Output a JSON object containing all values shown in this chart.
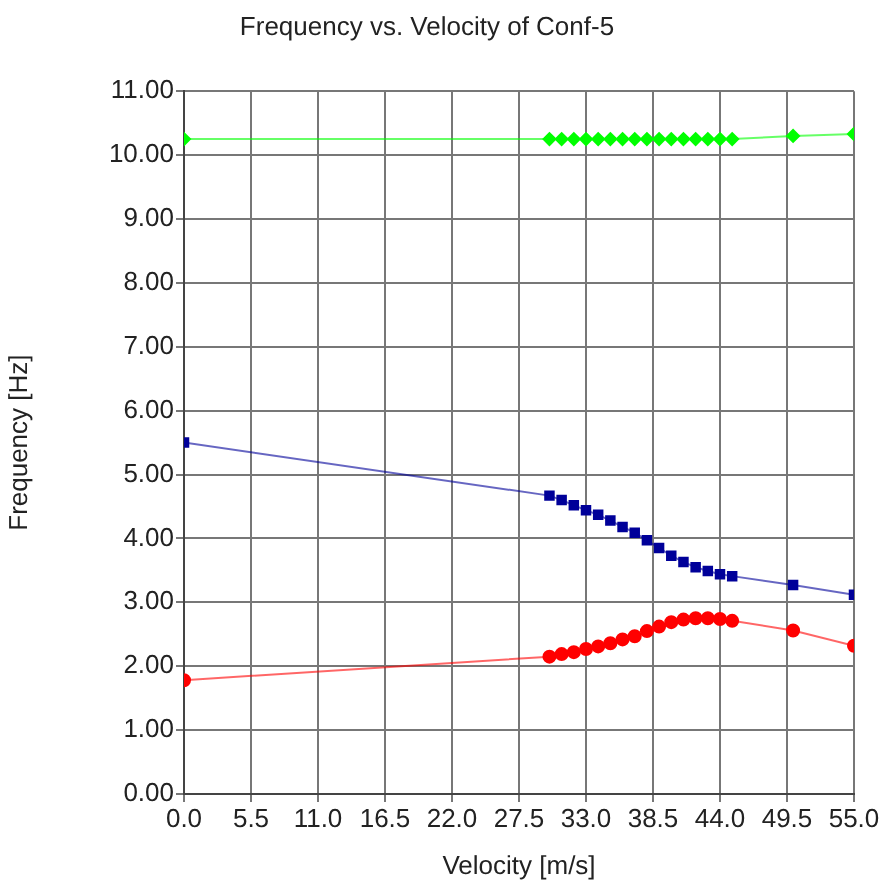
{
  "chart_data": {
    "type": "line",
    "title": "Frequency vs. Velocity of Conf-5",
    "xlabel": "Velocity [m/s]",
    "ylabel": "Frequency [Hz]",
    "x": [
      0,
      30,
      31,
      32,
      33,
      34,
      35,
      36,
      37,
      38,
      39,
      40,
      41,
      42,
      43,
      44,
      45,
      50,
      55
    ],
    "series": [
      {
        "color": "#00ff00",
        "marker": "diamond",
        "values": [
          10.25,
          10.25,
          10.25,
          10.25,
          10.25,
          10.25,
          10.25,
          10.25,
          10.25,
          10.25,
          10.25,
          10.25,
          10.25,
          10.25,
          10.25,
          10.25,
          10.25,
          10.3,
          10.33
        ]
      },
      {
        "color": "#000099",
        "marker": "square",
        "values": [
          5.5,
          4.67,
          4.6,
          4.52,
          4.44,
          4.37,
          4.28,
          4.18,
          4.09,
          3.97,
          3.85,
          3.73,
          3.63,
          3.55,
          3.49,
          3.44,
          3.41,
          3.27,
          3.12
        ]
      },
      {
        "color": "#ff0000",
        "marker": "circle",
        "values": [
          1.78,
          2.15,
          2.19,
          2.22,
          2.27,
          2.31,
          2.36,
          2.42,
          2.47,
          2.55,
          2.62,
          2.69,
          2.73,
          2.75,
          2.75,
          2.74,
          2.71,
          2.56,
          2.32
        ]
      }
    ],
    "xlim": [
      0,
      55
    ],
    "xticks": [
      {
        "value": 0,
        "label": "0.0"
      },
      {
        "value": 5.5,
        "label": "5.5"
      },
      {
        "value": 11,
        "label": "11.0"
      },
      {
        "value": 16.5,
        "label": "16.5"
      },
      {
        "value": 22,
        "label": "22.0"
      },
      {
        "value": 27.5,
        "label": "27.5"
      },
      {
        "value": 33,
        "label": "33.0"
      },
      {
        "value": 38.5,
        "label": "38.5"
      },
      {
        "value": 44,
        "label": "44.0"
      },
      {
        "value": 49.5,
        "label": "49.5"
      },
      {
        "value": 55,
        "label": "55.0"
      }
    ],
    "ylim": [
      0,
      11
    ],
    "yticks": [
      {
        "value": 0,
        "label": "0.00"
      },
      {
        "value": 1,
        "label": "1.00"
      },
      {
        "value": 2,
        "label": "2.00"
      },
      {
        "value": 3,
        "label": "3.00"
      },
      {
        "value": 4,
        "label": "4.00"
      },
      {
        "value": 5,
        "label": "5.00"
      },
      {
        "value": 6,
        "label": "6.00"
      },
      {
        "value": 7,
        "label": "7.00"
      },
      {
        "value": 8,
        "label": "8.00"
      },
      {
        "value": 9,
        "label": "9.00"
      },
      {
        "value": 10,
        "label": "10.00"
      },
      {
        "value": 11,
        "label": "11.00"
      }
    ],
    "grid": true,
    "legend": false
  }
}
